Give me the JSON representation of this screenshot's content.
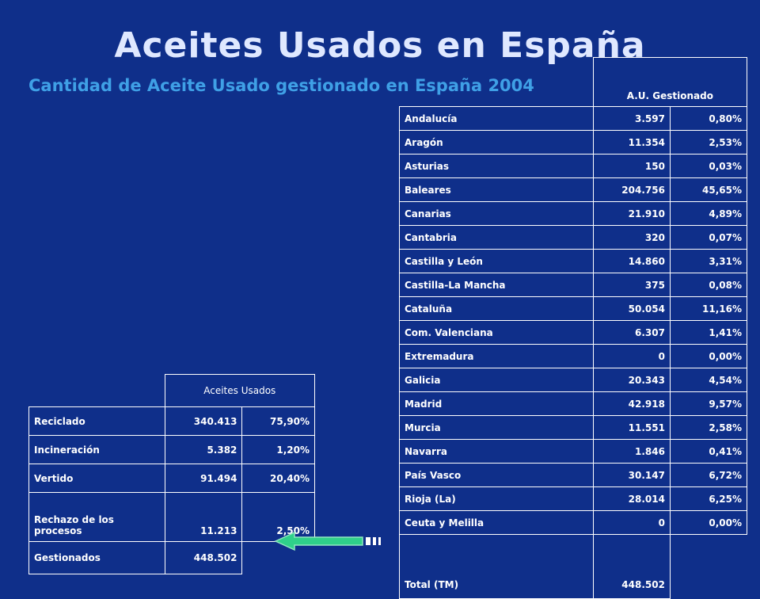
{
  "title": "Aceites Usados en España",
  "subtitle": "Cantidad de Aceite Usado gestionado en España 2004",
  "regions_table": {
    "header": "A.U. Gestionado",
    "rows": [
      {
        "name": "Andalucía",
        "value": "3.597",
        "pct": "0,80%"
      },
      {
        "name": "Aragón",
        "value": "11.354",
        "pct": "2,53%"
      },
      {
        "name": "Asturias",
        "value": "150",
        "pct": "0,03%"
      },
      {
        "name": "Baleares",
        "value": "204.756",
        "pct": "45,65%"
      },
      {
        "name": "Canarias",
        "value": "21.910",
        "pct": "4,89%"
      },
      {
        "name": "Cantabria",
        "value": "320",
        "pct": "0,07%"
      },
      {
        "name": "Castilla y León",
        "value": "14.860",
        "pct": "3,31%"
      },
      {
        "name": "Castilla-La Mancha",
        "value": "375",
        "pct": "0,08%"
      },
      {
        "name": "Cataluña",
        "value": "50.054",
        "pct": "11,16%"
      },
      {
        "name": "Com. Valenciana",
        "value": "6.307",
        "pct": "1,41%"
      },
      {
        "name": "Extremadura",
        "value": "0",
        "pct": "0,00%"
      },
      {
        "name": "Galicia",
        "value": "20.343",
        "pct": "4,54%"
      },
      {
        "name": "Madrid",
        "value": "42.918",
        "pct": "9,57%"
      },
      {
        "name": "Murcia",
        "value": "11.551",
        "pct": "2,58%"
      },
      {
        "name": "Navarra",
        "value": "1.846",
        "pct": "0,41%"
      },
      {
        "name": "País Vasco",
        "value": "30.147",
        "pct": "6,72%"
      },
      {
        "name": "Rioja (La)",
        "value": "28.014",
        "pct": "6,25%"
      },
      {
        "name": "Ceuta y Melilla",
        "value": "0",
        "pct": "0,00%"
      }
    ],
    "total": {
      "name": "Total (TM)",
      "value": "448.502"
    }
  },
  "oils_table": {
    "header": "Aceites Usados",
    "rows": [
      {
        "name": "Reciclado",
        "value": "340.413",
        "pct": "75,90%"
      },
      {
        "name": "Incineración",
        "value": "5.382",
        "pct": "1,20%"
      },
      {
        "name": "Vertido",
        "value": "91.494",
        "pct": "20,40%"
      },
      {
        "name": "Rechazo de los procesos",
        "value": "11.213",
        "pct": "2,50%"
      }
    ],
    "total": {
      "name": "Gestionados",
      "value": "448.502"
    }
  },
  "icons": {
    "back": "back-arrow-icon"
  },
  "colors": {
    "background": "#0f2f8a",
    "subtitle": "#3fa0e6",
    "arrow": "#2fd08a"
  }
}
